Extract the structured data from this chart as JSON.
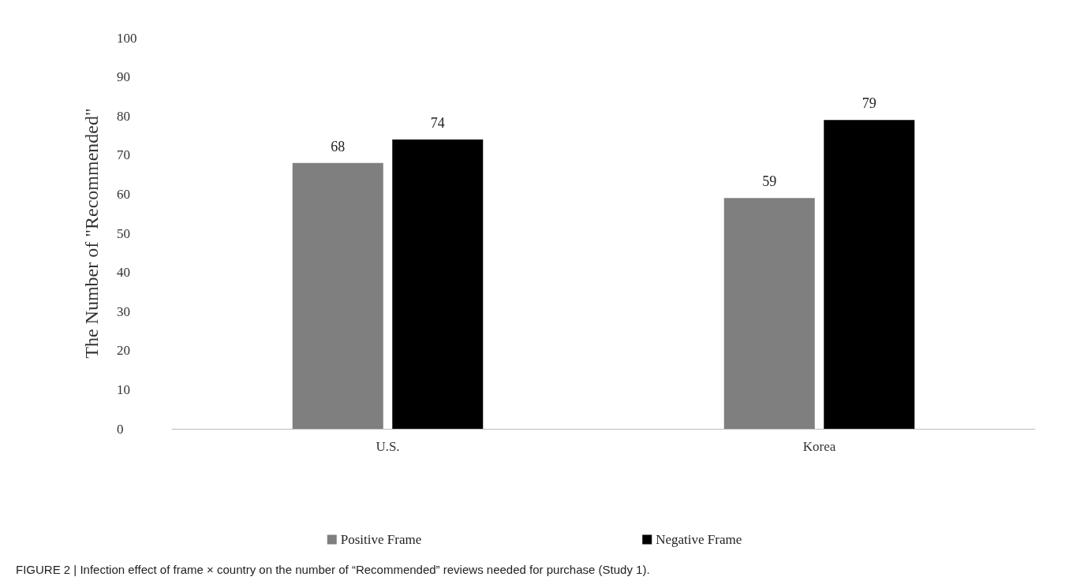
{
  "chart_data": {
    "type": "bar",
    "ylabel": "The Number of \"Recommended\"",
    "categories": [
      "U.S.",
      "Korea"
    ],
    "series": [
      {
        "name": "Positive Frame",
        "color": "#7f7f7f",
        "values": [
          68,
          59
        ]
      },
      {
        "name": "Negative Frame",
        "color": "#000000",
        "values": [
          74,
          79
        ]
      }
    ],
    "ylim": [
      0,
      100
    ],
    "yticks": [
      0,
      10,
      20,
      30,
      40,
      50,
      60,
      70,
      80,
      90,
      100
    ],
    "grid": false,
    "legend": "bottom",
    "data_labels": true,
    "annotations": [
      "FIGURE 2 | Infection effect of frame × country on the number of “Recommended” reviews needed for purchase (Study 1)."
    ]
  }
}
